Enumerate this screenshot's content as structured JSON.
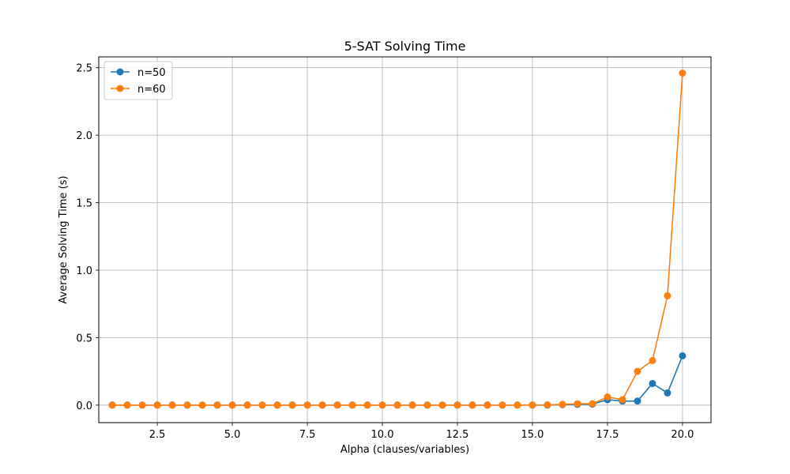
{
  "chart_data": {
    "type": "line",
    "title": "5-SAT Solving Time",
    "xlabel": "Alpha (clauses/variables)",
    "ylabel": "Average Solving Time (s)",
    "xlim": [
      0.55,
      20.95
    ],
    "ylim": [
      -0.13,
      2.58
    ],
    "xticks": [
      2.5,
      5.0,
      7.5,
      10.0,
      12.5,
      15.0,
      17.5,
      20.0
    ],
    "xtick_labels": [
      "2.5",
      "5.0",
      "7.5",
      "10.0",
      "12.5",
      "15.0",
      "17.5",
      "20.0"
    ],
    "yticks": [
      0.0,
      0.5,
      1.0,
      1.5,
      2.0,
      2.5
    ],
    "ytick_labels": [
      "0.0",
      "0.5",
      "1.0",
      "1.5",
      "2.0",
      "2.5"
    ],
    "grid": true,
    "legend_position": "top-left",
    "x": [
      1.0,
      1.5,
      2.0,
      2.5,
      3.0,
      3.5,
      4.0,
      4.5,
      5.0,
      5.5,
      6.0,
      6.5,
      7.0,
      7.5,
      8.0,
      8.5,
      9.0,
      9.5,
      10.0,
      10.5,
      11.0,
      11.5,
      12.0,
      12.5,
      13.0,
      13.5,
      14.0,
      14.5,
      15.0,
      15.5,
      16.0,
      16.5,
      17.0,
      17.5,
      18.0,
      18.5,
      19.0,
      19.5,
      20.0
    ],
    "series": [
      {
        "name": "n=50",
        "color": "#1f77b4",
        "values": [
          0.0,
          0.0,
          0.0,
          0.0,
          0.0,
          0.0,
          0.0,
          0.0,
          0.0,
          0.0,
          0.0,
          0.0,
          0.0,
          0.0,
          0.0,
          0.0,
          0.0,
          0.0,
          0.0,
          0.0,
          0.0,
          0.0,
          0.0,
          0.0,
          0.0,
          0.0,
          0.0,
          0.0,
          0.0,
          0.0,
          0.003,
          0.005,
          0.007,
          0.04,
          0.03,
          0.03,
          0.16,
          0.09,
          0.365
        ]
      },
      {
        "name": "n=60",
        "color": "#ff7f0e",
        "values": [
          0.0,
          0.0,
          0.0,
          0.0,
          0.0,
          0.0,
          0.0,
          0.0,
          0.0,
          0.0,
          0.0,
          0.0,
          0.0,
          0.0,
          0.0,
          0.0,
          0.0,
          0.0,
          0.0,
          0.0,
          0.0,
          0.0,
          0.0,
          0.0,
          0.0,
          0.0,
          0.0,
          0.0,
          0.001,
          0.002,
          0.005,
          0.01,
          0.01,
          0.06,
          0.04,
          0.25,
          0.33,
          0.81,
          2.46
        ]
      }
    ]
  }
}
